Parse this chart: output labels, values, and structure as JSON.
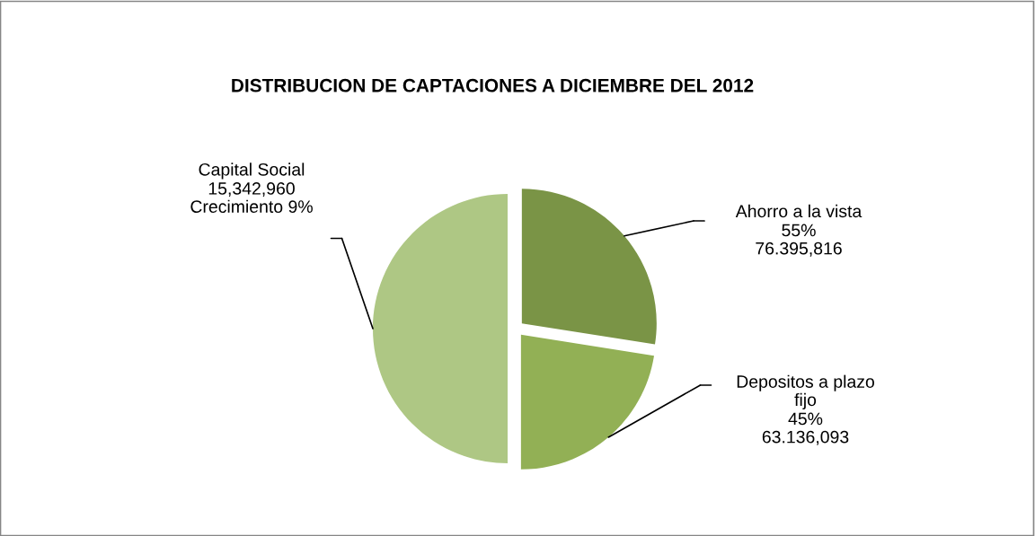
{
  "chart_data": {
    "type": "pie",
    "title": "DISTRIBUCION DE CAPTACIONES A DICIEMBRE DEL 2012",
    "categories": [
      "Capital Social",
      "Ahorro a la vista",
      "Depositos a plazo\nfijo"
    ],
    "values": [
      50,
      27.5,
      22.5
    ],
    "colors": [
      "#aec784",
      "#7a9446",
      "#92b055"
    ],
    "annotations": [
      "15,342,960\nCrecimiento 9%",
      "55%\n76.395,816",
      "45%\n63.136,093"
    ],
    "legend": false
  }
}
